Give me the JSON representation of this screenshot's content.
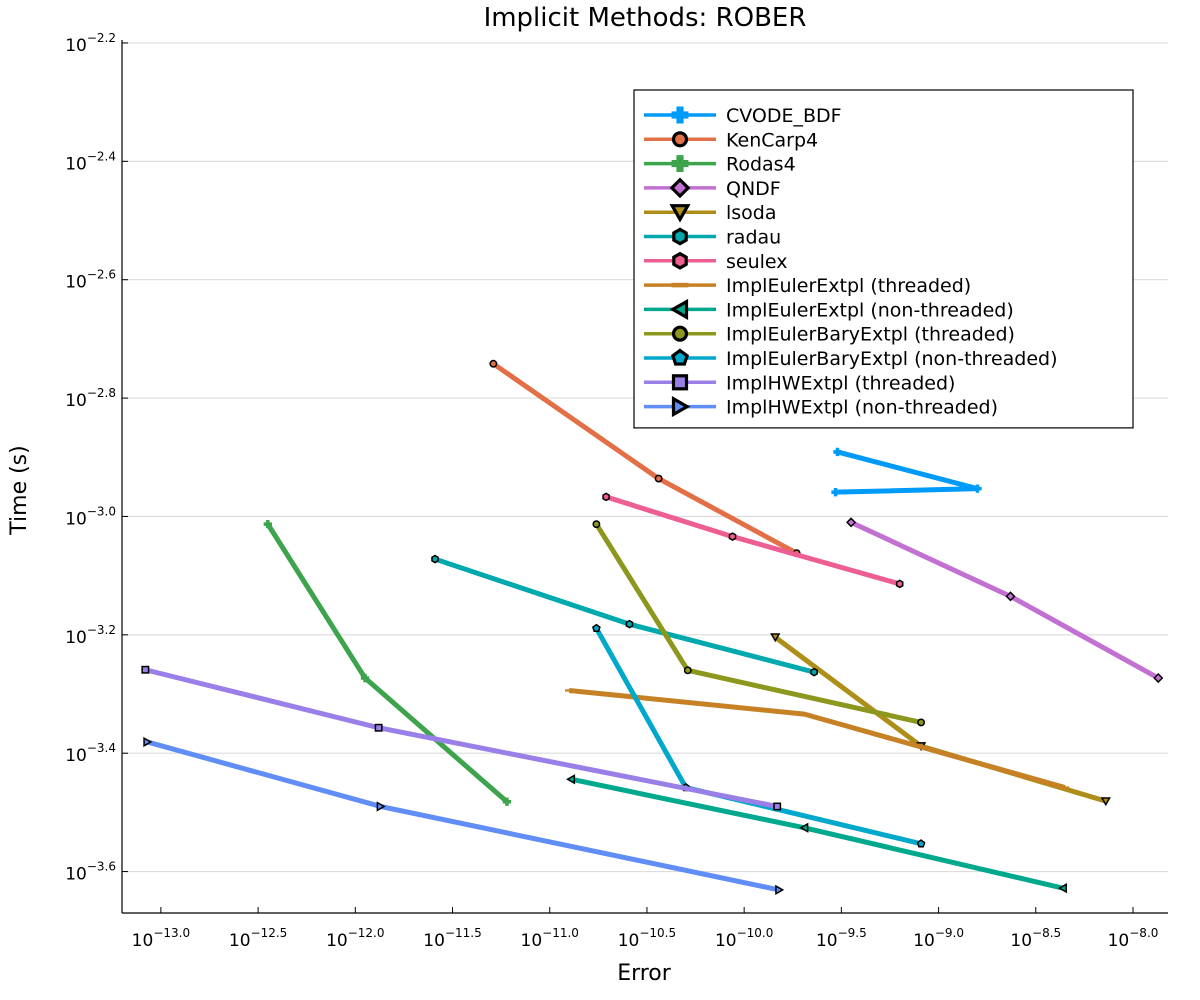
{
  "chart_data": {
    "type": "line",
    "title": "Implicit Methods: ROBER",
    "xlabel": "Error",
    "ylabel": "Time (s)",
    "x_scale": "log10",
    "y_scale": "log10",
    "xlim_log10": [
      -13.2,
      -7.82
    ],
    "ylim_log10": [
      -3.67,
      -2.195
    ],
    "x_ticks": [
      {
        "base": "10",
        "exp": "−13.0",
        "value": -13.0
      },
      {
        "base": "10",
        "exp": "−12.5",
        "value": -12.5
      },
      {
        "base": "10",
        "exp": "−12.0",
        "value": -12.0
      },
      {
        "base": "10",
        "exp": "−11.5",
        "value": -11.5
      },
      {
        "base": "10",
        "exp": "−11.0",
        "value": -11.0
      },
      {
        "base": "10",
        "exp": "−10.5",
        "value": -10.5
      },
      {
        "base": "10",
        "exp": "−10.0",
        "value": -10.0
      },
      {
        "base": "10",
        "exp": "−9.5",
        "value": -9.5
      },
      {
        "base": "10",
        "exp": "−9.0",
        "value": -9.0
      },
      {
        "base": "10",
        "exp": "−8.5",
        "value": -8.5
      },
      {
        "base": "10",
        "exp": "−8.0",
        "value": -8.0
      }
    ],
    "y_ticks": [
      {
        "base": "10",
        "exp": "−2.2",
        "value": -2.2
      },
      {
        "base": "10",
        "exp": "−2.4",
        "value": -2.4
      },
      {
        "base": "10",
        "exp": "−2.6",
        "value": -2.6
      },
      {
        "base": "10",
        "exp": "−2.8",
        "value": -2.8
      },
      {
        "base": "10",
        "exp": "−3.0",
        "value": -3.0
      },
      {
        "base": "10",
        "exp": "−3.2",
        "value": -3.2
      },
      {
        "base": "10",
        "exp": "−3.4",
        "value": -3.4
      },
      {
        "base": "10",
        "exp": "−3.6",
        "value": -3.6
      }
    ],
    "grid": true,
    "legend_position": "top-right",
    "series": [
      {
        "name": "CVODE_BDF",
        "color": "#009af9",
        "marker": "cross",
        "x_log10": [
          -9.52,
          -8.8,
          -9.53
        ],
        "y_log10": [
          -2.891,
          -2.953,
          -2.959
        ]
      },
      {
        "name": "KenCarp4",
        "color": "#e26f46",
        "marker": "circle",
        "x_log10": [
          -11.29,
          -10.44,
          -9.73
        ],
        "y_log10": [
          -2.742,
          -2.936,
          -3.062
        ]
      },
      {
        "name": "Rodas4",
        "color": "#3da44d",
        "marker": "cross",
        "x_log10": [
          -12.45,
          -11.95,
          -11.22
        ],
        "y_log10": [
          -3.013,
          -3.273,
          -3.482
        ]
      },
      {
        "name": "QNDF",
        "color": "#c271d2",
        "marker": "diamond",
        "x_log10": [
          -9.45,
          -8.63,
          -7.87
        ],
        "y_log10": [
          -3.01,
          -3.135,
          -3.273
        ]
      },
      {
        "name": "lsoda",
        "color": "#ac8e18",
        "marker": "triangle-down",
        "x_log10": [
          -9.84,
          -9.09,
          -8.14
        ],
        "y_log10": [
          -3.204,
          -3.388,
          -3.481
        ]
      },
      {
        "name": "radau",
        "color": "#00a9ad",
        "marker": "hexagon",
        "x_log10": [
          -11.59,
          -10.59,
          -9.64
        ],
        "y_log10": [
          -3.072,
          -3.182,
          -3.263
        ]
      },
      {
        "name": "seulex",
        "color": "#ed5e93",
        "marker": "hexagon",
        "x_log10": [
          -10.71,
          -10.06,
          -9.2
        ],
        "y_log10": [
          -2.967,
          -3.034,
          -3.114
        ]
      },
      {
        "name": "ImplEulerExtpl (threaded)",
        "color": "#c68125",
        "marker": "hline",
        "x_log10": [
          -10.9,
          -9.69,
          -8.35
        ],
        "y_log10": [
          -3.294,
          -3.334,
          -3.458
        ]
      },
      {
        "name": "ImplEulerExtpl (non-threaded)",
        "color": "#00a98d",
        "marker": "triangle-left",
        "x_log10": [
          -10.89,
          -9.69,
          -8.36
        ],
        "y_log10": [
          -3.444,
          -3.526,
          -3.628
        ]
      },
      {
        "name": "ImplEulerBaryExtpl (threaded)",
        "color": "#8e971d",
        "marker": "circle",
        "x_log10": [
          -10.76,
          -10.29,
          -9.09
        ],
        "y_log10": [
          -3.013,
          -3.26,
          -3.348
        ]
      },
      {
        "name": "ImplEulerBaryExtpl (non-threaded)",
        "color": "#00a8cb",
        "marker": "pentagon",
        "x_log10": [
          -10.76,
          -10.3,
          -9.09
        ],
        "y_log10": [
          -3.189,
          -3.458,
          -3.553
        ]
      },
      {
        "name": "ImplHWExtpl (threaded)",
        "color": "#9b7fe9",
        "marker": "square",
        "x_log10": [
          -13.08,
          -11.88,
          -9.83
        ],
        "y_log10": [
          -3.259,
          -3.357,
          -3.49
        ]
      },
      {
        "name": "ImplHWExtpl (non-threaded)",
        "color": "#618df6",
        "marker": "triangle-right",
        "x_log10": [
          -13.07,
          -11.87,
          -9.82
        ],
        "y_log10": [
          -3.381,
          -3.49,
          -3.631
        ]
      }
    ]
  }
}
